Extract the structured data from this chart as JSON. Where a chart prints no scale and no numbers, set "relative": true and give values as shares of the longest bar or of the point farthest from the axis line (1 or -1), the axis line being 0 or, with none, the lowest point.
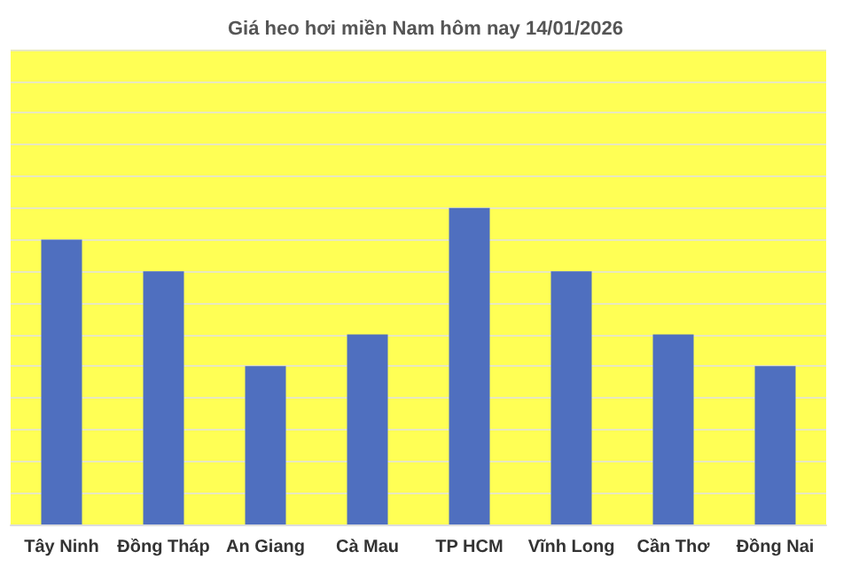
{
  "chart_data": {
    "type": "bar",
    "title": "Giá heo hơi miền Nam hôm nay 14/01/2026",
    "categories": [
      "Tây Ninh",
      "Đồng Tháp",
      "An Giang",
      "Cà Mau",
      "TP HCM",
      "Vĩnh Long",
      "Cần Thơ",
      "Đồng Nai"
    ],
    "values": [
      0.9,
      0.8,
      0.5,
      0.6,
      1,
      0.8,
      0.6,
      0.5
    ],
    "color": "#4f6fbf",
    "relative": true,
    "grid": "y"
  }
}
